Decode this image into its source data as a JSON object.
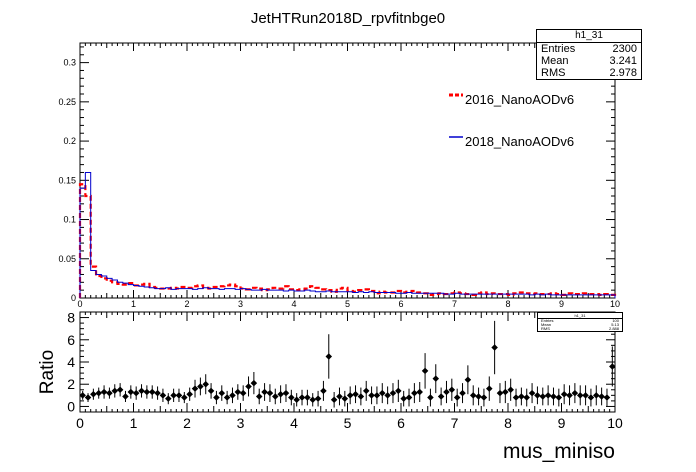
{
  "title": "JetHTRun2018D_rpvfitnbge0",
  "stats_main": {
    "name": "h1_31",
    "rows": [
      {
        "label": "Entries",
        "value": "2300"
      },
      {
        "label": "Mean",
        "value": "3.241"
      },
      {
        "label": "RMS",
        "value": "2.978"
      }
    ]
  },
  "stats_ratio": {
    "name": "h1_31",
    "rows": [
      {
        "label": "Entries",
        "value": "100"
      },
      {
        "label": "Mean",
        "value": "5.13"
      },
      {
        "label": "RMS",
        "value": "2.888"
      }
    ]
  },
  "legend": [
    {
      "label": "2016_NanoAODv6",
      "color": "#ff0000",
      "style": "dashed"
    },
    {
      "label": "2018_NanoAODv6",
      "color": "#0000cc",
      "style": "solid"
    }
  ],
  "chart_data": [
    {
      "type": "line",
      "title": "JetHTRun2018D_rpvfitnbge0",
      "xlim": [
        0,
        10
      ],
      "ylim": [
        0,
        0.325
      ],
      "x_ticks": [
        "0",
        "1",
        "2",
        "3",
        "4",
        "5",
        "6",
        "7",
        "8",
        "9",
        "10"
      ],
      "y_ticks": [
        "0",
        "0.05",
        "0.1",
        "0.15",
        "0.2",
        "0.25",
        "0.3"
      ],
      "y_tick_values": [
        0,
        0.05,
        0.1,
        0.15,
        0.2,
        0.25,
        0.3
      ],
      "bin_width": 0.1,
      "series": [
        {
          "name": "2016_NanoAODv6",
          "color": "#ff0000",
          "values": [
            0.145,
            0.13,
            0.04,
            0.028,
            0.025,
            0.022,
            0.02,
            0.018,
            0.017,
            0.019,
            0.016,
            0.017,
            0.018,
            0.014,
            0.013,
            0.012,
            0.012,
            0.013,
            0.012,
            0.014,
            0.013,
            0.015,
            0.016,
            0.013,
            0.012,
            0.014,
            0.015,
            0.016,
            0.017,
            0.015,
            0.012,
            0.011,
            0.013,
            0.012,
            0.01,
            0.011,
            0.013,
            0.012,
            0.015,
            0.011,
            0.01,
            0.011,
            0.012,
            0.015,
            0.013,
            0.011,
            0.01,
            0.008,
            0.012,
            0.013,
            0.009,
            0.008,
            0.01,
            0.011,
            0.009,
            0.006,
            0.008,
            0.007,
            0.007,
            0.009,
            0.007,
            0.008,
            0.009,
            0.007,
            0.006,
            0.004,
            0.005,
            0.006,
            0.005,
            0.006,
            0.007,
            0.006,
            0.005,
            0.004,
            0.006,
            0.007,
            0.005,
            0.006,
            0.005,
            0.005,
            0.004,
            0.006,
            0.007,
            0.006,
            0.005,
            0.006,
            0.005,
            0.005,
            0.006,
            0.005,
            0.004,
            0.006,
            0.005,
            0.005,
            0.006,
            0.005,
            0.005,
            0.004,
            0.005,
            0.004
          ]
        },
        {
          "name": "2018_NanoAODv6",
          "color": "#0000cc",
          "values": [
            0.14,
            0.16,
            0.035,
            0.03,
            0.028,
            0.025,
            0.023,
            0.02,
            0.019,
            0.017,
            0.016,
            0.015,
            0.014,
            0.013,
            0.012,
            0.012,
            0.013,
            0.011,
            0.012,
            0.012,
            0.012,
            0.011,
            0.012,
            0.013,
            0.012,
            0.012,
            0.011,
            0.012,
            0.012,
            0.011,
            0.012,
            0.011,
            0.01,
            0.01,
            0.011,
            0.01,
            0.01,
            0.01,
            0.009,
            0.01,
            0.009,
            0.009,
            0.01,
            0.009,
            0.008,
            0.008,
            0.009,
            0.008,
            0.008,
            0.008,
            0.008,
            0.007,
            0.008,
            0.007,
            0.008,
            0.007,
            0.007,
            0.007,
            0.007,
            0.006,
            0.006,
            0.007,
            0.006,
            0.006,
            0.006,
            0.006,
            0.006,
            0.006,
            0.005,
            0.005,
            0.006,
            0.005,
            0.005,
            0.005,
            0.005,
            0.005,
            0.005,
            0.005,
            0.005,
            0.005,
            0.005,
            0.005,
            0.005,
            0.005,
            0.004,
            0.005,
            0.004,
            0.005,
            0.004,
            0.004,
            0.004,
            0.004,
            0.004,
            0.004,
            0.004,
            0.004,
            0.004,
            0.004,
            0.004,
            0.004
          ]
        }
      ]
    },
    {
      "type": "scatter",
      "xlabel": "mus_miniso",
      "ylabel": "Ratio",
      "xlim": [
        0,
        10
      ],
      "ylim": [
        -0.5,
        8.5
      ],
      "x_ticks": [
        "0",
        "1",
        "2",
        "3",
        "4",
        "5",
        "6",
        "7",
        "8",
        "9",
        "10"
      ],
      "y_ticks": [
        "0",
        "2",
        "4",
        "6",
        "8"
      ],
      "y_tick_values": [
        0,
        2,
        4,
        6,
        8
      ],
      "series": [
        {
          "name": "Ratio",
          "x": [
            0.05,
            0.15,
            0.25,
            0.35,
            0.45,
            0.55,
            0.65,
            0.75,
            0.85,
            0.95,
            1.05,
            1.15,
            1.25,
            1.35,
            1.45,
            1.55,
            1.65,
            1.75,
            1.85,
            1.95,
            2.05,
            2.15,
            2.25,
            2.35,
            2.45,
            2.55,
            2.65,
            2.75,
            2.85,
            2.95,
            3.05,
            3.15,
            3.25,
            3.35,
            3.45,
            3.55,
            3.65,
            3.75,
            3.85,
            3.95,
            4.05,
            4.15,
            4.25,
            4.35,
            4.45,
            4.55,
            4.65,
            4.75,
            4.85,
            4.95,
            5.05,
            5.15,
            5.25,
            5.35,
            5.45,
            5.55,
            5.65,
            5.75,
            5.85,
            5.95,
            6.05,
            6.15,
            6.25,
            6.35,
            6.45,
            6.55,
            6.65,
            6.75,
            6.85,
            6.95,
            7.05,
            7.15,
            7.25,
            7.35,
            7.45,
            7.55,
            7.65,
            7.75,
            7.85,
            7.95,
            8.05,
            8.15,
            8.25,
            8.35,
            8.45,
            8.55,
            8.65,
            8.75,
            8.85,
            8.95,
            9.05,
            9.15,
            9.25,
            9.35,
            9.45,
            9.55,
            9.65,
            9.75,
            9.85,
            9.95
          ],
          "y": [
            1.0,
            0.8,
            1.1,
            1.2,
            1.3,
            1.2,
            1.4,
            1.5,
            0.9,
            1.3,
            1.2,
            1.4,
            1.3,
            1.3,
            1.2,
            1.0,
            0.7,
            1.0,
            1.0,
            0.8,
            1.1,
            1.6,
            1.8,
            2.0,
            1.4,
            0.8,
            1.2,
            0.8,
            1.0,
            1.3,
            1.2,
            1.8,
            2.1,
            0.9,
            1.3,
            1.2,
            0.9,
            1.1,
            1.2,
            0.8,
            0.6,
            0.8,
            0.8,
            0.6,
            0.7,
            1.4,
            4.5,
            0.6,
            0.9,
            0.7,
            1.0,
            1.1,
            0.9,
            1.4,
            1.0,
            1.0,
            1.2,
            1.0,
            1.2,
            1.4,
            0.7,
            0.8,
            1.2,
            1.3,
            3.2,
            0.8,
            2.5,
            0.9,
            1.3,
            1.5,
            0.8,
            1.2,
            2.4,
            1.0,
            0.9,
            0.8,
            1.6,
            5.3,
            1.2,
            1.3,
            1.5,
            0.8,
            0.9,
            0.8,
            1.2,
            1.0,
            0.9,
            1.0,
            0.9,
            0.8,
            1.1,
            1.0,
            1.2,
            1.0,
            1.0,
            0.8,
            1.0,
            0.9,
            0.8,
            3.6
          ],
          "err": [
            0.4,
            0.4,
            0.5,
            0.5,
            0.6,
            0.5,
            0.6,
            0.6,
            0.5,
            0.6,
            0.6,
            0.6,
            0.6,
            0.6,
            0.6,
            0.6,
            0.5,
            0.6,
            0.6,
            0.5,
            0.6,
            0.8,
            0.8,
            0.9,
            0.7,
            0.6,
            0.7,
            0.6,
            0.7,
            0.7,
            0.7,
            0.9,
            1.0,
            0.7,
            0.8,
            0.8,
            0.7,
            0.8,
            0.8,
            0.7,
            0.6,
            0.7,
            0.7,
            0.6,
            0.7,
            0.9,
            2.0,
            0.7,
            0.8,
            0.7,
            0.8,
            0.8,
            0.8,
            0.9,
            0.8,
            0.8,
            0.9,
            0.8,
            0.9,
            1.0,
            0.7,
            0.8,
            0.9,
            0.9,
            1.6,
            0.8,
            1.3,
            0.8,
            1.0,
            1.0,
            0.8,
            0.9,
            1.3,
            0.9,
            0.8,
            0.8,
            1.1,
            2.4,
            0.9,
            1.0,
            1.0,
            0.8,
            0.8,
            0.8,
            0.9,
            0.8,
            0.8,
            0.9,
            0.8,
            0.8,
            0.9,
            0.9,
            0.9,
            0.9,
            0.9,
            0.8,
            0.9,
            0.8,
            0.8,
            1.8
          ]
        }
      ]
    }
  ]
}
